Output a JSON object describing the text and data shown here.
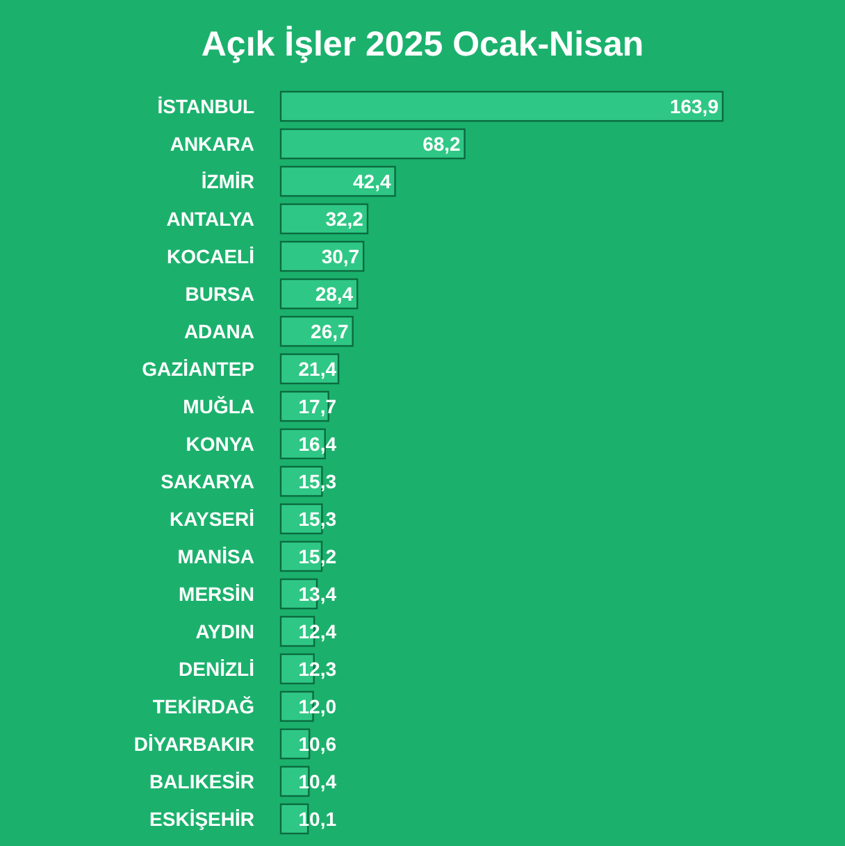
{
  "chart_data": {
    "type": "bar",
    "orientation": "horizontal",
    "title": "Açık İşler 2025 Ocak-Nisan",
    "categories": [
      "İSTANBUL",
      "ANKARA",
      "İZMİR",
      "ANTALYA",
      "KOCAELİ",
      "BURSA",
      "ADANA",
      "GAZİANTEP",
      "MUĞLA",
      "KONYA",
      "SAKARYA",
      "KAYSERİ",
      "MANİSA",
      "MERSİN",
      "AYDIN",
      "DENİZLİ",
      "TEKİRDAĞ",
      "DİYARBAKIR",
      "BALIKESİR",
      "ESKİŞEHİR"
    ],
    "values": [
      163.9,
      68.2,
      42.4,
      32.2,
      30.7,
      28.4,
      26.7,
      21.4,
      17.7,
      16.4,
      15.3,
      15.3,
      15.2,
      13.4,
      12.4,
      12.3,
      12.0,
      10.6,
      10.4,
      10.1
    ],
    "value_labels": [
      "163,9",
      "68,2",
      "42,4",
      "32,2",
      "30,7",
      "28,4",
      "26,7",
      "21,4",
      "17,7",
      "16,4",
      "15,3",
      "15,3",
      "15,2",
      "13,4",
      "12,4",
      "12,3",
      "12,0",
      "10,6",
      "10,4",
      "10,1"
    ],
    "color": "#2fc785"
  }
}
